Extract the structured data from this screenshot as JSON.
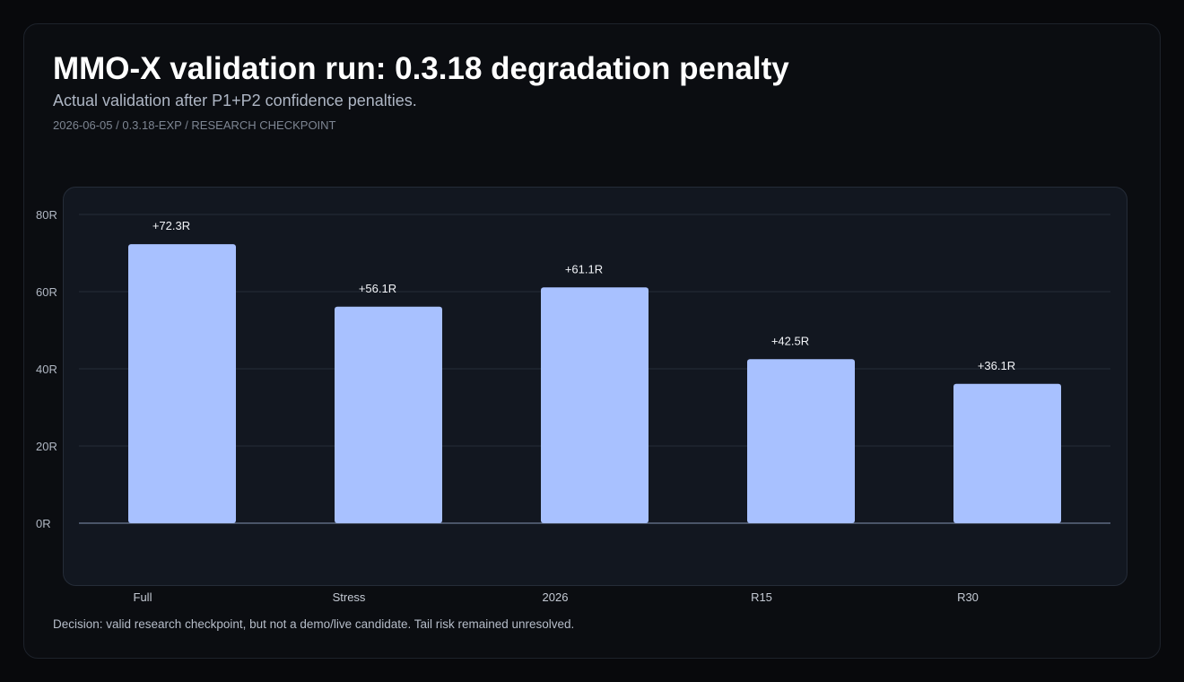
{
  "header": {
    "title": "MMO-X validation run: 0.3.18 degradation penalty",
    "subtitle": "Actual validation after P1+P2 confidence penalties.",
    "meta": "2026-06-05 / 0.3.18-EXP / RESEARCH CHECKPOINT"
  },
  "footer": {
    "decision": "Decision: valid research checkpoint, but not a demo/live candidate. Tail risk remained unresolved."
  },
  "colors": {
    "bar": "#a8c1ff",
    "grid": "#262c38",
    "baseline": "#5c6a80",
    "panel": "#121720",
    "panel_border": "#252c38"
  },
  "chart_data": {
    "type": "bar",
    "categories": [
      "Full",
      "Stress",
      "2026",
      "R15",
      "R30"
    ],
    "values": [
      72.3,
      56.1,
      61.1,
      42.5,
      36.1
    ],
    "data_labels": [
      "+72.3R",
      "+56.1R",
      "+61.1R",
      "+42.5R",
      "+36.1R"
    ],
    "y_ticks": [
      0,
      20,
      40,
      60,
      80
    ],
    "y_tick_labels": [
      "0R",
      "20R",
      "40R",
      "60R",
      "80R"
    ],
    "ylim": [
      0,
      80
    ],
    "grid": true,
    "legend": "none",
    "xlabel": "",
    "ylabel": ""
  }
}
